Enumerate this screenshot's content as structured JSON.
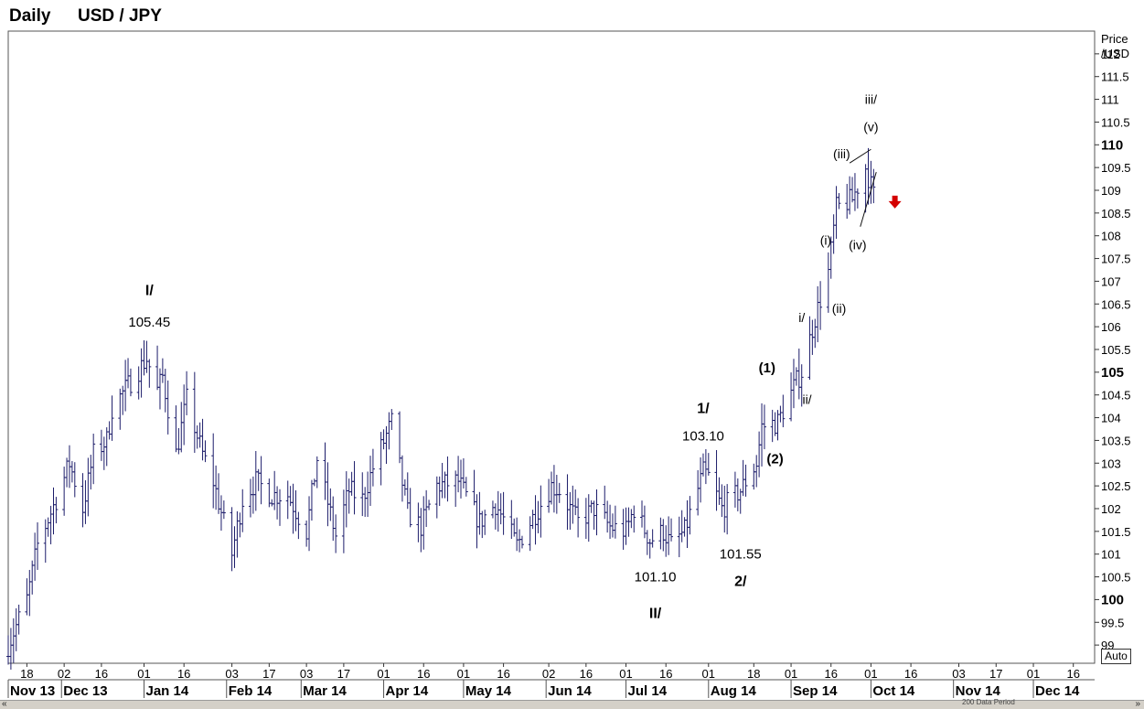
{
  "header": {
    "period": "Daily",
    "symbol": "USD / JPY"
  },
  "auto_label": "Auto",
  "footer_note": "200 Data Period",
  "chart_data": {
    "type": "ohlc",
    "y_axis_title": [
      "Price",
      "/USD"
    ],
    "ylim": [
      98.6,
      112.5
    ],
    "y_ticks": [
      {
        "v": 99,
        "label": "99",
        "bold": false
      },
      {
        "v": 99.5,
        "label": "99.5",
        "bold": false
      },
      {
        "v": 100,
        "label": "100",
        "bold": true
      },
      {
        "v": 100.5,
        "label": "100.5",
        "bold": false
      },
      {
        "v": 101,
        "label": "101",
        "bold": false
      },
      {
        "v": 101.5,
        "label": "101.5",
        "bold": false
      },
      {
        "v": 102,
        "label": "102",
        "bold": false
      },
      {
        "v": 102.5,
        "label": "102.5",
        "bold": false
      },
      {
        "v": 103,
        "label": "103",
        "bold": false
      },
      {
        "v": 103.5,
        "label": "103.5",
        "bold": false
      },
      {
        "v": 104,
        "label": "104",
        "bold": false
      },
      {
        "v": 104.5,
        "label": "104.5",
        "bold": false
      },
      {
        "v": 105,
        "label": "105",
        "bold": true
      },
      {
        "v": 105.5,
        "label": "105.5",
        "bold": false
      },
      {
        "v": 106,
        "label": "106",
        "bold": false
      },
      {
        "v": 106.5,
        "label": "106.5",
        "bold": false
      },
      {
        "v": 107,
        "label": "107",
        "bold": false
      },
      {
        "v": 107.5,
        "label": "107.5",
        "bold": false
      },
      {
        "v": 108,
        "label": "108",
        "bold": false
      },
      {
        "v": 108.5,
        "label": "108.5",
        "bold": false
      },
      {
        "v": 109,
        "label": "109",
        "bold": false
      },
      {
        "v": 109.5,
        "label": "109.5",
        "bold": false
      },
      {
        "v": 110,
        "label": "110",
        "bold": true
      },
      {
        "v": 110.5,
        "label": "110.5",
        "bold": false
      },
      {
        "v": 111,
        "label": "111",
        "bold": false
      },
      {
        "v": 111.5,
        "label": "111.5",
        "bold": false
      },
      {
        "v": 112,
        "label": "112",
        "bold": false
      }
    ],
    "x_day_labels": [
      {
        "d": "2013-11-18",
        "label": "18"
      },
      {
        "d": "2013-12-02",
        "label": "02"
      },
      {
        "d": "2013-12-16",
        "label": "16"
      },
      {
        "d": "2014-01-01",
        "label": "01"
      },
      {
        "d": "2014-01-16",
        "label": "16"
      },
      {
        "d": "2014-02-03",
        "label": "03"
      },
      {
        "d": "2014-02-17",
        "label": "17"
      },
      {
        "d": "2014-03-03",
        "label": "03"
      },
      {
        "d": "2014-03-17",
        "label": "17"
      },
      {
        "d": "2014-04-01",
        "label": "01"
      },
      {
        "d": "2014-04-16",
        "label": "16"
      },
      {
        "d": "2014-05-01",
        "label": "01"
      },
      {
        "d": "2014-05-16",
        "label": "16"
      },
      {
        "d": "2014-06-02",
        "label": "02"
      },
      {
        "d": "2014-06-16",
        "label": "16"
      },
      {
        "d": "2014-07-01",
        "label": "01"
      },
      {
        "d": "2014-07-16",
        "label": "16"
      },
      {
        "d": "2014-08-01",
        "label": "01"
      },
      {
        "d": "2014-08-18",
        "label": "18"
      },
      {
        "d": "2014-09-01",
        "label": "01"
      },
      {
        "d": "2014-09-16",
        "label": "16"
      },
      {
        "d": "2014-10-01",
        "label": "01"
      },
      {
        "d": "2014-10-16",
        "label": "16"
      },
      {
        "d": "2014-11-03",
        "label": "03"
      },
      {
        "d": "2014-11-17",
        "label": "17"
      },
      {
        "d": "2014-12-01",
        "label": "01"
      },
      {
        "d": "2014-12-16",
        "label": "16"
      }
    ],
    "x_month_labels": [
      {
        "d": "2013-11-01",
        "label": "Nov 13"
      },
      {
        "d": "2013-12-01",
        "label": "Dec 13"
      },
      {
        "d": "2014-01-01",
        "label": "Jan 14"
      },
      {
        "d": "2014-02-01",
        "label": "Feb 14"
      },
      {
        "d": "2014-03-01",
        "label": "Mar 14"
      },
      {
        "d": "2014-04-01",
        "label": "Apr 14"
      },
      {
        "d": "2014-05-01",
        "label": "May 14"
      },
      {
        "d": "2014-06-01",
        "label": "Jun 14"
      },
      {
        "d": "2014-07-01",
        "label": "Jul 14"
      },
      {
        "d": "2014-08-01",
        "label": "Aug 14"
      },
      {
        "d": "2014-09-01",
        "label": "Sep 14"
      },
      {
        "d": "2014-10-01",
        "label": "Oct 14"
      },
      {
        "d": "2014-11-01",
        "label": "Nov 14"
      },
      {
        "d": "2014-12-01",
        "label": "Dec 14"
      }
    ],
    "x_range": [
      "2013-11-11",
      "2014-12-24"
    ],
    "price_path": [
      [
        "2013-11-11",
        99.0
      ],
      [
        "2013-11-18",
        100.0
      ],
      [
        "2013-11-22",
        101.2
      ],
      [
        "2013-11-29",
        102.2
      ],
      [
        "2013-12-04",
        103.0
      ],
      [
        "2013-12-09",
        102.0
      ],
      [
        "2013-12-13",
        103.2
      ],
      [
        "2013-12-18",
        103.5
      ],
      [
        "2013-12-20",
        104.2
      ],
      [
        "2013-12-27",
        104.8
      ],
      [
        "2014-01-02",
        105.3
      ],
      [
        "2014-01-06",
        104.6
      ],
      [
        "2014-01-08",
        104.9
      ],
      [
        "2014-01-13",
        103.2
      ],
      [
        "2014-01-17",
        104.4
      ],
      [
        "2014-01-23",
        103.2
      ],
      [
        "2014-01-27",
        102.6
      ],
      [
        "2014-02-03",
        101.0
      ],
      [
        "2014-02-07",
        102.2
      ],
      [
        "2014-02-12",
        102.6
      ],
      [
        "2014-02-18",
        102.3
      ],
      [
        "2014-02-24",
        102.3
      ],
      [
        "2014-03-03",
        101.5
      ],
      [
        "2014-03-07",
        103.1
      ],
      [
        "2014-03-14",
        101.4
      ],
      [
        "2014-03-19",
        102.4
      ],
      [
        "2014-03-24",
        102.2
      ],
      [
        "2014-03-28",
        102.9
      ],
      [
        "2014-04-04",
        103.9
      ],
      [
        "2014-04-10",
        101.9
      ],
      [
        "2014-04-15",
        101.6
      ],
      [
        "2014-04-21",
        102.5
      ],
      [
        "2014-04-29",
        102.6
      ],
      [
        "2014-05-07",
        101.7
      ],
      [
        "2014-05-13",
        102.1
      ],
      [
        "2014-05-21",
        101.2
      ],
      [
        "2014-05-28",
        101.9
      ],
      [
        "2014-06-03",
        102.5
      ],
      [
        "2014-06-06",
        102.4
      ],
      [
        "2014-06-13",
        101.7
      ],
      [
        "2014-06-19",
        102.0
      ],
      [
        "2014-06-25",
        101.6
      ],
      [
        "2014-07-01",
        101.5
      ],
      [
        "2014-07-04",
        102.0
      ],
      [
        "2014-07-10",
        101.3
      ],
      [
        "2014-07-15",
        101.5
      ],
      [
        "2014-07-18",
        101.2
      ],
      [
        "2014-07-23",
        101.5
      ],
      [
        "2014-07-30",
        102.8
      ],
      [
        "2014-08-01",
        102.7
      ],
      [
        "2014-08-06",
        102.0
      ],
      [
        "2014-08-13",
        102.4
      ],
      [
        "2014-08-19",
        103.0
      ],
      [
        "2014-08-21",
        103.8
      ],
      [
        "2014-08-27",
        103.9
      ],
      [
        "2014-09-03",
        104.8
      ],
      [
        "2014-09-05",
        105.0
      ],
      [
        "2014-09-10",
        106.2
      ],
      [
        "2014-09-15",
        107.2
      ],
      [
        "2014-09-18",
        108.6
      ],
      [
        "2014-09-24",
        108.8
      ],
      [
        "2014-09-29",
        109.5
      ],
      [
        "2014-10-02",
        108.9
      ]
    ],
    "wave_lines": [
      [
        [
          "2014-09-23",
          109.6
        ],
        [
          "2014-10-01",
          109.9
        ]
      ],
      [
        [
          "2014-09-27",
          108.2
        ],
        [
          "2014-10-03",
          109.4
        ]
      ]
    ],
    "annotations": [
      {
        "text": "I/",
        "d": "2014-01-03",
        "v": 106.7,
        "bold": true,
        "size": 16
      },
      {
        "text": "105.45",
        "d": "2014-01-03",
        "v": 106.0,
        "bold": false,
        "size": 15
      },
      {
        "text": "1/",
        "d": "2014-07-30",
        "v": 104.1,
        "bold": true,
        "size": 16
      },
      {
        "text": "103.10",
        "d": "2014-07-30",
        "v": 103.5,
        "bold": false,
        "size": 15
      },
      {
        "text": "(1)",
        "d": "2014-08-23",
        "v": 105.0,
        "bold": true,
        "size": 15
      },
      {
        "text": "(2)",
        "d": "2014-08-26",
        "v": 103.0,
        "bold": true,
        "size": 15
      },
      {
        "text": "i/",
        "d": "2014-09-05",
        "v": 106.1,
        "bold": false,
        "size": 14
      },
      {
        "text": "ii/",
        "d": "2014-09-07",
        "v": 104.3,
        "bold": false,
        "size": 14
      },
      {
        "text": "(i)",
        "d": "2014-09-14",
        "v": 107.8,
        "bold": false,
        "size": 14
      },
      {
        "text": "(ii)",
        "d": "2014-09-19",
        "v": 106.3,
        "bold": false,
        "size": 14
      },
      {
        "text": "(iii)",
        "d": "2014-09-20",
        "v": 109.7,
        "bold": false,
        "size": 14
      },
      {
        "text": "(iv)",
        "d": "2014-09-26",
        "v": 107.7,
        "bold": false,
        "size": 14
      },
      {
        "text": "iii/",
        "d": "2014-10-01",
        "v": 110.9,
        "bold": false,
        "size": 14
      },
      {
        "text": "(v)",
        "d": "2014-10-01",
        "v": 110.3,
        "bold": false,
        "size": 14
      },
      {
        "text": "101.10",
        "d": "2014-07-12",
        "v": 100.4,
        "bold": false,
        "size": 15
      },
      {
        "text": "II/",
        "d": "2014-07-12",
        "v": 99.6,
        "bold": true,
        "size": 16
      },
      {
        "text": "101.55",
        "d": "2014-08-13",
        "v": 100.9,
        "bold": false,
        "size": 15
      },
      {
        "text": "2/",
        "d": "2014-08-13",
        "v": 100.3,
        "bold": true,
        "size": 16
      }
    ],
    "forecast_arrow": {
      "d": "2014-10-10",
      "v": 108.7,
      "direction": "down",
      "color": "#d40000"
    },
    "bar_color": "#1c1c6a",
    "grid": false
  }
}
